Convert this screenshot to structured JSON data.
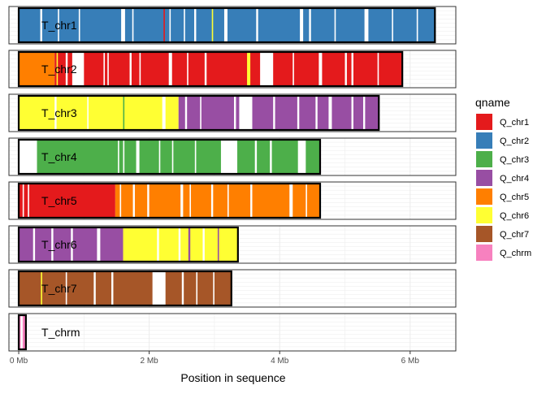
{
  "chart_data": {
    "type": "bar",
    "xlabel": "Position in sequence",
    "x_unit": "Mb",
    "xlim": [
      -0.15,
      6.7
    ],
    "x_ticks": [
      {
        "value": 0,
        "label": "0 Mb"
      },
      {
        "value": 2,
        "label": "2 Mb"
      },
      {
        "value": 4,
        "label": "4 Mb"
      },
      {
        "value": 6,
        "label": "6 Mb"
      }
    ],
    "grid": true,
    "legend": {
      "title": "qname",
      "placement": "right",
      "entries": [
        {
          "name": "Q_chr1",
          "color": "#E41A1C"
        },
        {
          "name": "Q_chr2",
          "color": "#377EB8"
        },
        {
          "name": "Q_chr3",
          "color": "#4DAF4A"
        },
        {
          "name": "Q_chr4",
          "color": "#984EA3"
        },
        {
          "name": "Q_chr5",
          "color": "#FF7F00"
        },
        {
          "name": "Q_chr6",
          "color": "#FFFF33"
        },
        {
          "name": "Q_chr7",
          "color": "#A65628"
        },
        {
          "name": "Q_chrm",
          "color": "#F781BF"
        }
      ]
    },
    "tracks": [
      {
        "name": "T_chr1",
        "length_mb": 6.38,
        "segments": [
          {
            "start": 0.0,
            "end": 6.38,
            "q": "Q_chr2"
          },
          {
            "start": 0.33,
            "end": 0.36,
            "q": "gap"
          },
          {
            "start": 0.6,
            "end": 0.62,
            "q": "gap"
          },
          {
            "start": 0.92,
            "end": 0.94,
            "q": "gap"
          },
          {
            "start": 1.57,
            "end": 1.63,
            "q": "gap"
          },
          {
            "start": 1.74,
            "end": 1.76,
            "q": "gap"
          },
          {
            "start": 2.22,
            "end": 2.24,
            "q": "Q_chr1"
          },
          {
            "start": 2.31,
            "end": 2.33,
            "q": "gap"
          },
          {
            "start": 2.53,
            "end": 2.55,
            "q": "gap"
          },
          {
            "start": 2.69,
            "end": 2.72,
            "q": "gap"
          },
          {
            "start": 2.96,
            "end": 2.98,
            "q": "Q_chr6"
          },
          {
            "start": 3.15,
            "end": 3.2,
            "q": "gap"
          },
          {
            "start": 3.64,
            "end": 3.67,
            "q": "gap"
          },
          {
            "start": 4.31,
            "end": 4.36,
            "q": "gap"
          },
          {
            "start": 4.45,
            "end": 4.48,
            "q": "gap"
          },
          {
            "start": 4.84,
            "end": 4.86,
            "q": "gap"
          },
          {
            "start": 5.3,
            "end": 5.36,
            "q": "gap"
          },
          {
            "start": 5.72,
            "end": 5.74,
            "q": "gap"
          },
          {
            "start": 6.1,
            "end": 6.12,
            "q": "gap"
          }
        ]
      },
      {
        "name": "T_chr2",
        "length_mb": 5.88,
        "segments": [
          {
            "start": 0.0,
            "end": 0.55,
            "q": "Q_chr5"
          },
          {
            "start": 0.55,
            "end": 5.88,
            "q": "Q_chr1"
          },
          {
            "start": 0.58,
            "end": 0.6,
            "q": "Q_chr6"
          },
          {
            "start": 0.72,
            "end": 0.75,
            "q": "gap"
          },
          {
            "start": 0.82,
            "end": 1.0,
            "q": "gap"
          },
          {
            "start": 1.3,
            "end": 1.32,
            "q": "gap"
          },
          {
            "start": 1.36,
            "end": 1.38,
            "q": "gap"
          },
          {
            "start": 1.7,
            "end": 1.73,
            "q": "gap"
          },
          {
            "start": 1.85,
            "end": 1.87,
            "q": "gap"
          },
          {
            "start": 2.3,
            "end": 2.35,
            "q": "gap"
          },
          {
            "start": 2.58,
            "end": 2.6,
            "q": "gap"
          },
          {
            "start": 2.85,
            "end": 2.88,
            "q": "gap"
          },
          {
            "start": 3.5,
            "end": 3.55,
            "q": "Q_chr6"
          },
          {
            "start": 3.7,
            "end": 3.9,
            "q": "gap"
          },
          {
            "start": 4.2,
            "end": 4.22,
            "q": "gap"
          },
          {
            "start": 4.6,
            "end": 4.65,
            "q": "gap"
          },
          {
            "start": 5.0,
            "end": 5.03,
            "q": "gap"
          },
          {
            "start": 5.1,
            "end": 5.13,
            "q": "gap"
          },
          {
            "start": 5.5,
            "end": 5.52,
            "q": "gap"
          }
        ]
      },
      {
        "name": "T_chr3",
        "length_mb": 5.52,
        "segments": [
          {
            "start": 0.0,
            "end": 2.45,
            "q": "Q_chr6"
          },
          {
            "start": 2.45,
            "end": 5.52,
            "q": "Q_chr4"
          },
          {
            "start": 0.55,
            "end": 0.58,
            "q": "gap"
          },
          {
            "start": 1.05,
            "end": 1.07,
            "q": "gap"
          },
          {
            "start": 1.6,
            "end": 1.62,
            "q": "Q_chr3"
          },
          {
            "start": 2.2,
            "end": 2.25,
            "q": "gap"
          },
          {
            "start": 2.55,
            "end": 2.58,
            "q": "gap"
          },
          {
            "start": 2.78,
            "end": 2.8,
            "q": "gap"
          },
          {
            "start": 3.3,
            "end": 3.33,
            "q": "gap"
          },
          {
            "start": 3.38,
            "end": 3.58,
            "q": "gap"
          },
          {
            "start": 3.9,
            "end": 3.93,
            "q": "gap"
          },
          {
            "start": 4.27,
            "end": 4.3,
            "q": "gap"
          },
          {
            "start": 4.55,
            "end": 4.58,
            "q": "gap"
          },
          {
            "start": 4.75,
            "end": 4.8,
            "q": "gap"
          },
          {
            "start": 5.1,
            "end": 5.13,
            "q": "gap"
          },
          {
            "start": 5.28,
            "end": 5.31,
            "q": "gap"
          }
        ]
      },
      {
        "name": "T_chr4",
        "length_mb": 4.62,
        "segments": [
          {
            "start": 0.0,
            "end": 0.28,
            "q": "gap"
          },
          {
            "start": 0.28,
            "end": 4.62,
            "q": "Q_chr3"
          },
          {
            "start": 1.52,
            "end": 1.54,
            "q": "gap"
          },
          {
            "start": 1.6,
            "end": 1.62,
            "q": "gap"
          },
          {
            "start": 1.8,
            "end": 1.85,
            "q": "gap"
          },
          {
            "start": 2.15,
            "end": 2.17,
            "q": "gap"
          },
          {
            "start": 2.35,
            "end": 2.37,
            "q": "gap"
          },
          {
            "start": 2.7,
            "end": 2.72,
            "q": "gap"
          },
          {
            "start": 3.1,
            "end": 3.35,
            "q": "gap"
          },
          {
            "start": 3.62,
            "end": 3.65,
            "q": "gap"
          },
          {
            "start": 3.85,
            "end": 3.88,
            "q": "gap"
          },
          {
            "start": 4.28,
            "end": 4.4,
            "q": "gap"
          }
        ]
      },
      {
        "name": "T_chr5",
        "length_mb": 4.62,
        "segments": [
          {
            "start": 0.0,
            "end": 1.48,
            "q": "Q_chr1"
          },
          {
            "start": 1.48,
            "end": 4.62,
            "q": "Q_chr5"
          },
          {
            "start": 0.06,
            "end": 0.08,
            "q": "gap"
          },
          {
            "start": 0.14,
            "end": 0.16,
            "q": "gap"
          },
          {
            "start": 1.55,
            "end": 1.57,
            "q": "gap"
          },
          {
            "start": 1.75,
            "end": 1.78,
            "q": "gap"
          },
          {
            "start": 1.97,
            "end": 2.0,
            "q": "gap"
          },
          {
            "start": 2.48,
            "end": 2.52,
            "q": "gap"
          },
          {
            "start": 2.62,
            "end": 2.64,
            "q": "gap"
          },
          {
            "start": 2.95,
            "end": 2.98,
            "q": "gap"
          },
          {
            "start": 3.2,
            "end": 3.22,
            "q": "gap"
          },
          {
            "start": 3.55,
            "end": 3.58,
            "q": "gap"
          },
          {
            "start": 4.15,
            "end": 4.2,
            "q": "gap"
          },
          {
            "start": 4.4,
            "end": 4.42,
            "q": "gap"
          }
        ]
      },
      {
        "name": "T_chr6",
        "length_mb": 3.36,
        "segments": [
          {
            "start": 0.0,
            "end": 1.6,
            "q": "Q_chr4"
          },
          {
            "start": 1.6,
            "end": 3.36,
            "q": "Q_chr6"
          },
          {
            "start": 0.22,
            "end": 0.25,
            "q": "gap"
          },
          {
            "start": 0.5,
            "end": 0.53,
            "q": "gap"
          },
          {
            "start": 0.8,
            "end": 0.83,
            "q": "gap"
          },
          {
            "start": 1.2,
            "end": 1.25,
            "q": "gap"
          },
          {
            "start": 2.12,
            "end": 2.15,
            "q": "gap"
          },
          {
            "start": 2.45,
            "end": 2.48,
            "q": "gap"
          },
          {
            "start": 2.6,
            "end": 2.63,
            "q": "Q_chr4"
          },
          {
            "start": 2.82,
            "end": 2.85,
            "q": "gap"
          },
          {
            "start": 3.05,
            "end": 3.07,
            "q": "Q_chr4"
          }
        ]
      },
      {
        "name": "T_chr7",
        "length_mb": 3.26,
        "segments": [
          {
            "start": 0.0,
            "end": 3.26,
            "q": "Q_chr7"
          },
          {
            "start": 0.34,
            "end": 0.36,
            "q": "Q_chr6"
          },
          {
            "start": 0.72,
            "end": 0.74,
            "q": "gap"
          },
          {
            "start": 1.15,
            "end": 1.18,
            "q": "gap"
          },
          {
            "start": 1.42,
            "end": 1.45,
            "q": "gap"
          },
          {
            "start": 2.05,
            "end": 2.25,
            "q": "gap"
          },
          {
            "start": 2.5,
            "end": 2.53,
            "q": "gap"
          },
          {
            "start": 2.72,
            "end": 2.74,
            "q": "gap"
          },
          {
            "start": 2.98,
            "end": 3.0,
            "q": "gap"
          }
        ]
      },
      {
        "name": "T_chrm",
        "length_mb": 0.11,
        "segments": [
          {
            "start": 0.0,
            "end": 0.11,
            "q": "Q_chrm"
          },
          {
            "start": 0.03,
            "end": 0.06,
            "q": "gap"
          }
        ]
      }
    ]
  }
}
